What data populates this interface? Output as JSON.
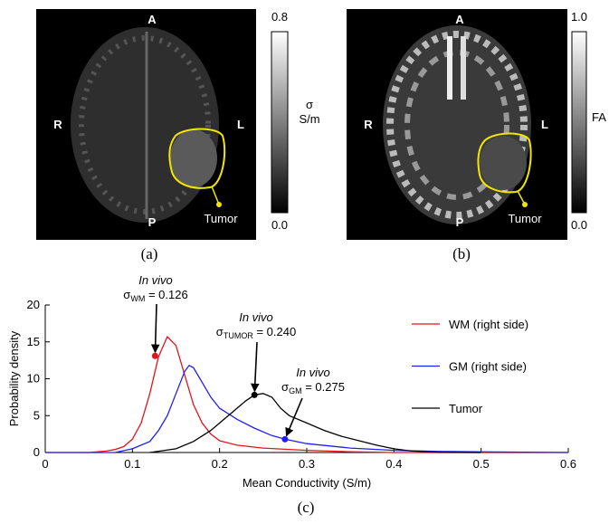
{
  "panels": {
    "a": {
      "anterior": "A",
      "right": "R",
      "left": "L",
      "posterior": "P",
      "tumor": "Tumor",
      "colorbar_max": "0.8",
      "colorbar_min": "0.0",
      "colorbar_symbol": "σ",
      "colorbar_unit": "S/m",
      "tag": "(a)"
    },
    "b": {
      "anterior": "A",
      "right": "R",
      "left": "L",
      "posterior": "P",
      "tumor": "Tumor",
      "colorbar_max": "1.0",
      "colorbar_min": "0.0",
      "colorbar_label": "FA",
      "tag": "(b)"
    }
  },
  "chart_data": {
    "type": "line",
    "tag": "(c)",
    "x_label": "Mean Conductivity (S/m)",
    "y_label": "Probability density",
    "xlim": [
      0,
      0.6
    ],
    "xticks": [
      0,
      0.1,
      0.2,
      0.3,
      0.4,
      0.5,
      0.6
    ],
    "ylim": [
      0,
      20
    ],
    "yticks": [
      0,
      5,
      10,
      15,
      20
    ],
    "legend": "top-right",
    "series": [
      {
        "name": "WM (right side)",
        "color": "#e0151c",
        "x": [
          0,
          0.05,
          0.07,
          0.08,
          0.09,
          0.1,
          0.11,
          0.12,
          0.13,
          0.14,
          0.15,
          0.16,
          0.17,
          0.18,
          0.19,
          0.2,
          0.22,
          0.25,
          0.3,
          0.35,
          0.4,
          0.6
        ],
        "values": [
          0,
          0,
          0.2,
          0.4,
          0.8,
          1.8,
          4,
          8,
          13,
          15.7,
          14.5,
          10.5,
          6.5,
          4,
          2.5,
          1.6,
          1,
          0.6,
          0.3,
          0.1,
          0,
          0
        ]
      },
      {
        "name": "GM (right side)",
        "color": "#1f1ff0",
        "x": [
          0,
          0.08,
          0.1,
          0.12,
          0.13,
          0.14,
          0.15,
          0.16,
          0.165,
          0.17,
          0.18,
          0.19,
          0.2,
          0.22,
          0.24,
          0.26,
          0.275,
          0.3,
          0.35,
          0.4,
          0.45,
          0.5,
          0.6
        ],
        "values": [
          0,
          0,
          0.5,
          1.5,
          3,
          5,
          8,
          11,
          11.8,
          11.5,
          9.5,
          7.5,
          6,
          4.5,
          3.3,
          2.3,
          1.8,
          1.2,
          0.6,
          0.3,
          0.15,
          0.08,
          0
        ]
      },
      {
        "name": "Tumor",
        "color": "#000000",
        "x": [
          0.12,
          0.15,
          0.17,
          0.19,
          0.2,
          0.21,
          0.22,
          0.23,
          0.24,
          0.25,
          0.26,
          0.27,
          0.28,
          0.3,
          0.32,
          0.34,
          0.36,
          0.38,
          0.4,
          0.42,
          0.45,
          0.5
        ],
        "values": [
          0,
          0.5,
          1.5,
          3,
          4,
          5,
          6,
          7,
          7.8,
          8,
          7.5,
          6,
          5,
          4,
          3,
          2.2,
          1.6,
          1,
          0.5,
          0.2,
          0.05,
          0
        ]
      }
    ],
    "annotations": [
      {
        "label": "In vivo",
        "symbol": "σ",
        "subscript": "WM",
        "text": " = 0.126",
        "x": 0.126,
        "y": 13.1,
        "color": "#e0151c"
      },
      {
        "label": "In vivo",
        "symbol": "σ",
        "subscript": "TUMOR",
        "text": " = 0.240",
        "x": 0.24,
        "y": 7.8,
        "color": "#000000"
      },
      {
        "label": "In vivo",
        "symbol": "σ",
        "subscript": "GM",
        "text": " = 0.275",
        "x": 0.275,
        "y": 1.8,
        "color": "#1f1ff0"
      }
    ]
  }
}
